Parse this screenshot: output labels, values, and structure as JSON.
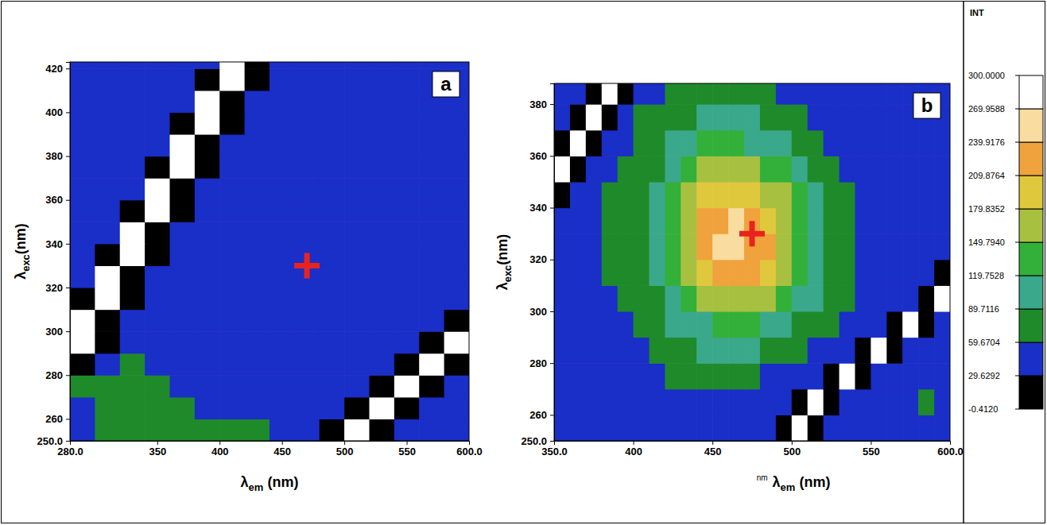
{
  "chart_data": [
    {
      "type": "heatmap",
      "title": "a",
      "xlabel": [
        "λ",
        "em",
        " (nm)"
      ],
      "ylabel": [
        "λ",
        "exc",
        "(nm)"
      ],
      "xlim": [
        280,
        600
      ],
      "ylim": [
        250,
        423
      ],
      "xticks": [
        {
          "value": 280,
          "label": "280.0"
        },
        350,
        400,
        450,
        500,
        550,
        {
          "value": 600,
          "label": "600.0"
        }
      ],
      "yticks": [
        {
          "value": 250,
          "label": "250.0"
        },
        260,
        280,
        300,
        320,
        340,
        360,
        380,
        400,
        420
      ],
      "x": [
        290,
        310,
        330,
        350,
        370,
        390,
        410,
        430,
        450,
        470,
        490,
        510,
        530,
        550,
        570,
        590
      ],
      "y": [
        255,
        265,
        275,
        285,
        295,
        305,
        315,
        325,
        335,
        345,
        355,
        365,
        375,
        385,
        395,
        405,
        415,
        425
      ],
      "z": [
        [
          55,
          75,
          80,
          85,
          70,
          65,
          62,
          62,
          45,
          44,
          -5,
          320,
          -5,
          44,
          44,
          44
        ],
        [
          58,
          78,
          82,
          72,
          62,
          50,
          48,
          47,
          46,
          45,
          44,
          -5,
          320,
          -5,
          44,
          44
        ],
        [
          60,
          80,
          84,
          75,
          58,
          48,
          46,
          45,
          45,
          44,
          44,
          44,
          -5,
          320,
          -5,
          44
        ],
        [
          -5,
          56,
          60,
          55,
          50,
          47,
          46,
          45,
          45,
          44,
          44,
          44,
          44,
          -5,
          320,
          -5
        ],
        [
          320,
          -5,
          48,
          47,
          46,
          45,
          45,
          44,
          44,
          44,
          44,
          44,
          44,
          44,
          -5,
          320
        ],
        [
          320,
          -5,
          47,
          46,
          46,
          45,
          45,
          44,
          44,
          44,
          44,
          44,
          44,
          44,
          44,
          -5
        ],
        [
          -5,
          320,
          -5,
          46,
          46,
          45,
          45,
          44,
          44,
          44,
          44,
          44,
          44,
          44,
          44,
          44
        ],
        [
          44,
          320,
          -5,
          47,
          46,
          46,
          52,
          44,
          44,
          44,
          44,
          44,
          44,
          44,
          44,
          44
        ],
        [
          44,
          -5,
          320,
          -5,
          46,
          46,
          45,
          44,
          44,
          44,
          44,
          44,
          44,
          44,
          44,
          44
        ],
        [
          44,
          44,
          320,
          -5,
          47,
          46,
          52,
          52,
          44,
          44,
          44,
          44,
          44,
          44,
          44,
          44
        ],
        [
          44,
          44,
          -5,
          320,
          -5,
          46,
          53,
          45,
          44,
          44,
          44,
          44,
          44,
          44,
          44,
          44
        ],
        [
          44,
          44,
          44,
          320,
          -5,
          47,
          46,
          45,
          44,
          44,
          44,
          44,
          44,
          44,
          44,
          44
        ],
        [
          44,
          44,
          44,
          -5,
          320,
          -5,
          46,
          45,
          44,
          44,
          44,
          44,
          44,
          44,
          44,
          44
        ],
        [
          44,
          44,
          44,
          44,
          320,
          -5,
          46,
          45,
          44,
          44,
          44,
          44,
          44,
          44,
          44,
          44
        ],
        [
          44,
          44,
          44,
          44,
          -5,
          320,
          -5,
          45,
          44,
          44,
          44,
          44,
          44,
          44,
          44,
          44
        ],
        [
          44,
          44,
          44,
          44,
          44,
          320,
          -5,
          45,
          44,
          44,
          44,
          44,
          44,
          44,
          44,
          44
        ],
        [
          44,
          44,
          44,
          44,
          44,
          -5,
          320,
          -5,
          44,
          44,
          44,
          44,
          44,
          44,
          44,
          44
        ],
        [
          44,
          44,
          44,
          44,
          44,
          44,
          320,
          -5,
          44,
          44,
          44,
          44,
          44,
          44,
          44,
          44
        ]
      ],
      "points": {
        "x": [
          470
        ],
        "y": [
          330
        ],
        "color": "#e8231f",
        "marker": "cross"
      }
    },
    {
      "type": "heatmap",
      "title": "b",
      "xlabel": [
        "λ",
        "em",
        " (nm)"
      ],
      "ylabel": [
        "λ",
        "exc",
        "(nm)"
      ],
      "annotation": "nm",
      "xlim": [
        350,
        600
      ],
      "ylim": [
        250,
        388
      ],
      "xticks": [
        {
          "value": 350,
          "label": "350.0"
        },
        400,
        450,
        500,
        550,
        {
          "value": 600,
          "label": "600.0"
        }
      ],
      "yticks": [
        {
          "value": 250,
          "label": "250.0"
        },
        260,
        280,
        300,
        320,
        340,
        360,
        380
      ],
      "x": [
        355,
        365,
        375,
        385,
        395,
        405,
        415,
        425,
        435,
        445,
        455,
        465,
        475,
        485,
        495,
        505,
        515,
        525,
        535,
        545,
        555,
        565,
        575,
        585,
        595
      ],
      "y": [
        255,
        265,
        275,
        285,
        295,
        305,
        315,
        325,
        335,
        345,
        355,
        365,
        375,
        385
      ],
      "z": [
        [
          45,
          44,
          46,
          45,
          47,
          48,
          50,
          52,
          50,
          48,
          47,
          46,
          48,
          45,
          -5,
          320,
          -5,
          44,
          45,
          46,
          44,
          45,
          46,
          45,
          44
        ],
        [
          46,
          45,
          47,
          48,
          50,
          52,
          55,
          56,
          54,
          52,
          50,
          49,
          50,
          48,
          46,
          -5,
          320,
          -5,
          46,
          45,
          47,
          46,
          48,
          62,
          47
        ],
        [
          47,
          46,
          48,
          50,
          52,
          56,
          58,
          60,
          62,
          70,
          72,
          70,
          68,
          58,
          52,
          50,
          48,
          -5,
          320,
          -5,
          48,
          47,
          46,
          45,
          46
        ],
        [
          48,
          47,
          50,
          52,
          55,
          58,
          62,
          75,
          85,
          92,
          96,
          95,
          90,
          82,
          74,
          66,
          58,
          52,
          48,
          -5,
          320,
          -5,
          47,
          46,
          45
        ],
        [
          48,
          50,
          52,
          55,
          58,
          62,
          72,
          90,
          105,
          118,
          125,
          126,
          120,
          110,
          98,
          85,
          72,
          62,
          54,
          50,
          48,
          -5,
          320,
          -5,
          46
        ],
        [
          50,
          52,
          55,
          58,
          62,
          70,
          85,
          110,
          135,
          155,
          168,
          172,
          165,
          150,
          130,
          110,
          90,
          72,
          60,
          52,
          50,
          48,
          46,
          -5,
          320
        ],
        [
          52,
          54,
          57,
          60,
          66,
          78,
          100,
          130,
          165,
          195,
          215,
          220,
          212,
          192,
          165,
          135,
          105,
          82,
          64,
          55,
          50,
          48,
          46,
          45,
          -5
        ],
        [
          53,
          55,
          58,
          62,
          68,
          82,
          108,
          140,
          178,
          215,
          240,
          248,
          236,
          210,
          178,
          142,
          110,
          84,
          66,
          56,
          51,
          48,
          46,
          45,
          44
        ],
        [
          52,
          54,
          58,
          62,
          68,
          82,
          106,
          138,
          175,
          212,
          238,
          245,
          232,
          208,
          175,
          140,
          108,
          82,
          64,
          55,
          50,
          48,
          46,
          45,
          44
        ],
        [
          -5,
          53,
          56,
          60,
          66,
          78,
          98,
          125,
          158,
          188,
          205,
          208,
          198,
          178,
          152,
          122,
          95,
          75,
          60,
          52,
          48,
          47,
          46,
          45,
          44
        ],
        [
          320,
          -5,
          54,
          58,
          62,
          72,
          88,
          110,
          135,
          155,
          165,
          166,
          158,
          142,
          122,
          100,
          80,
          66,
          55,
          50,
          47,
          46,
          45,
          44,
          44
        ],
        [
          -5,
          320,
          -5,
          55,
          58,
          65,
          76,
          92,
          108,
          120,
          126,
          125,
          118,
          106,
          92,
          78,
          66,
          56,
          50,
          47,
          46,
          45,
          44,
          44,
          43
        ],
        [
          46,
          -5,
          320,
          -5,
          55,
          60,
          66,
          76,
          86,
          92,
          95,
          94,
          90,
          82,
          72,
          63,
          56,
          50,
          47,
          46,
          45,
          44,
          44,
          43,
          43
        ],
        [
          45,
          46,
          -5,
          320,
          -5,
          55,
          58,
          62,
          66,
          68,
          68,
          67,
          65,
          60,
          55,
          51,
          48,
          46,
          45,
          44,
          44,
          43,
          43,
          42,
          42
        ]
      ],
      "points": {
        "x": [
          475
        ],
        "y": [
          330
        ],
        "color": "#e8231f",
        "marker": "cross"
      },
      "colorbar": {
        "title": "INT",
        "range": [
          -0.412,
          300
        ],
        "ticks": [
          {
            "value": -0.412,
            "label": "-0.4120"
          },
          29.6292,
          59.6704,
          89.7116,
          119.7528,
          {
            "value": 149.794,
            "label": "149.7940"
          },
          179.8352,
          209.8764,
          239.9176,
          269.9588,
          {
            "value": 300,
            "label": "300.0000"
          }
        ],
        "colors": [
          "#000000",
          "#1a2ec8",
          "#1f8a2a",
          "#3aa88a",
          "#33b03a",
          "#a8c040",
          "#e0c83c",
          "#f0a23c",
          "#f8dca0",
          "#ffffff"
        ]
      }
    }
  ]
}
